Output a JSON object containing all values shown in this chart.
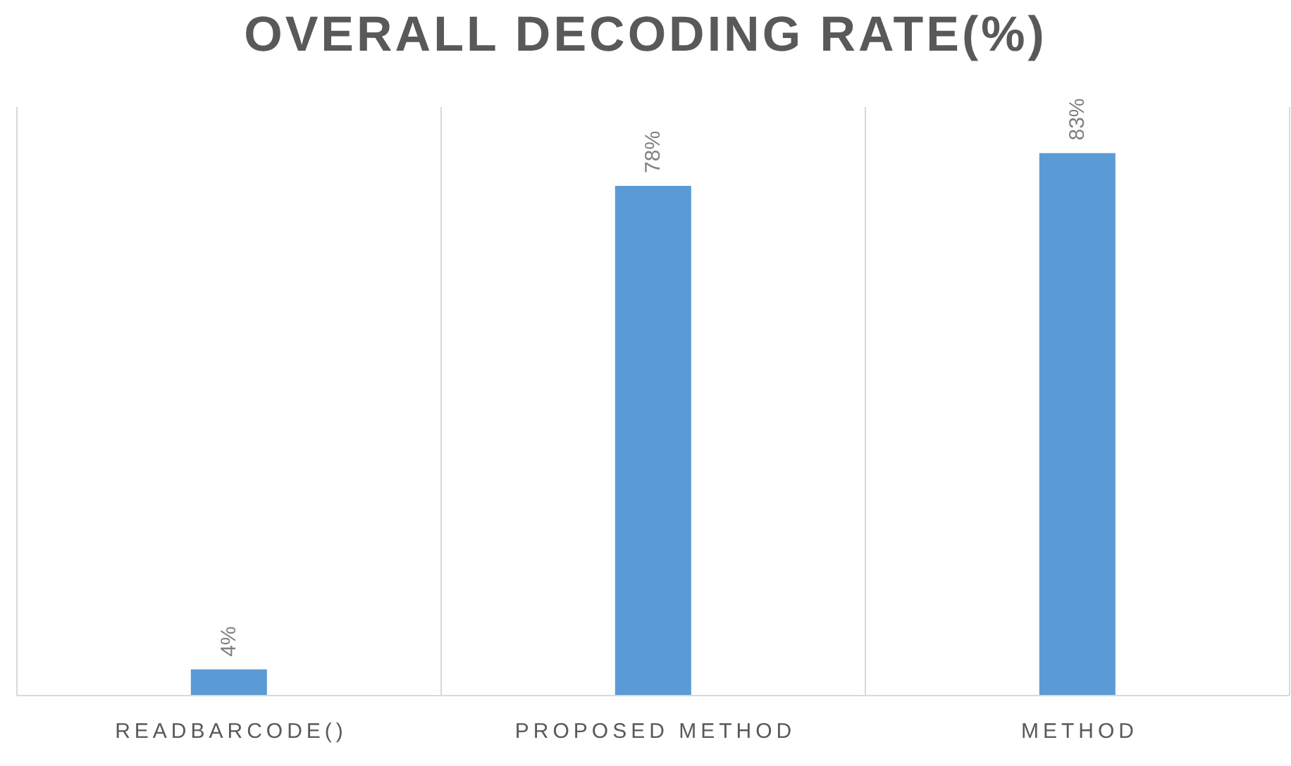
{
  "chart_data": {
    "type": "bar",
    "title": "OVERALL DECODING RATE(%)",
    "categories": [
      "READBARCODE()",
      "PROPOSED METHOD",
      "METHOD"
    ],
    "values": [
      4,
      78,
      83
    ],
    "value_labels": [
      "4%",
      "78%",
      "83%"
    ],
    "color": "#5b9bd5",
    "grid": "x"
  }
}
